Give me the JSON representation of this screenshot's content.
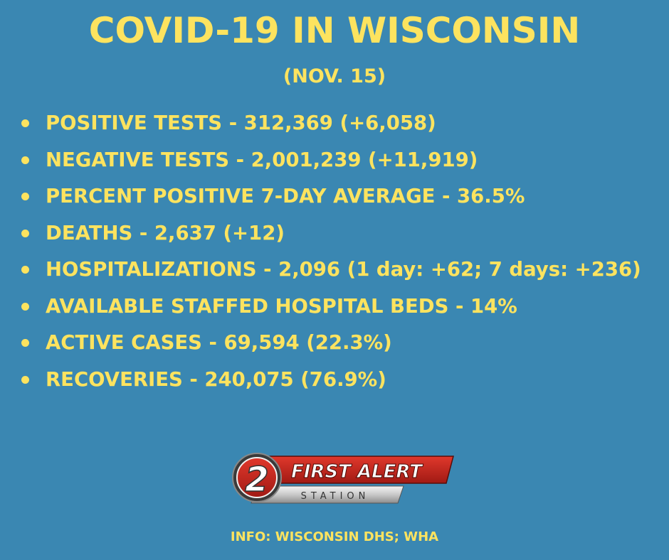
{
  "title": "COVID-19 IN WISCONSIN",
  "subtitle": "(NOV. 15)",
  "stats": [
    "POSITIVE TESTS - 312,369 (+6,058)",
    "NEGATIVE TESTS - 2,001,239 (+11,919)",
    "PERCENT POSITIVE 7-DAY AVERAGE - 36.5%",
    "DEATHS - 2,637 (+12)",
    "HOSPITALIZATIONS - 2,096 (1 day: +62; 7 days: +236)",
    "AVAILABLE STAFFED HOSPITAL BEDS - 14%",
    "ACTIVE CASES - 69,594 (22.3%)",
    "RECOVERIES - 240,075 (76.9%)"
  ],
  "logo": {
    "number": "2",
    "text": "FIRST ALERT",
    "subtext": "STATION"
  },
  "source": "INFO: WISCONSIN DHS; WHA",
  "colors": {
    "background": "#3a87b2",
    "text": "#fde35f",
    "logo_red": "#c8261d"
  }
}
